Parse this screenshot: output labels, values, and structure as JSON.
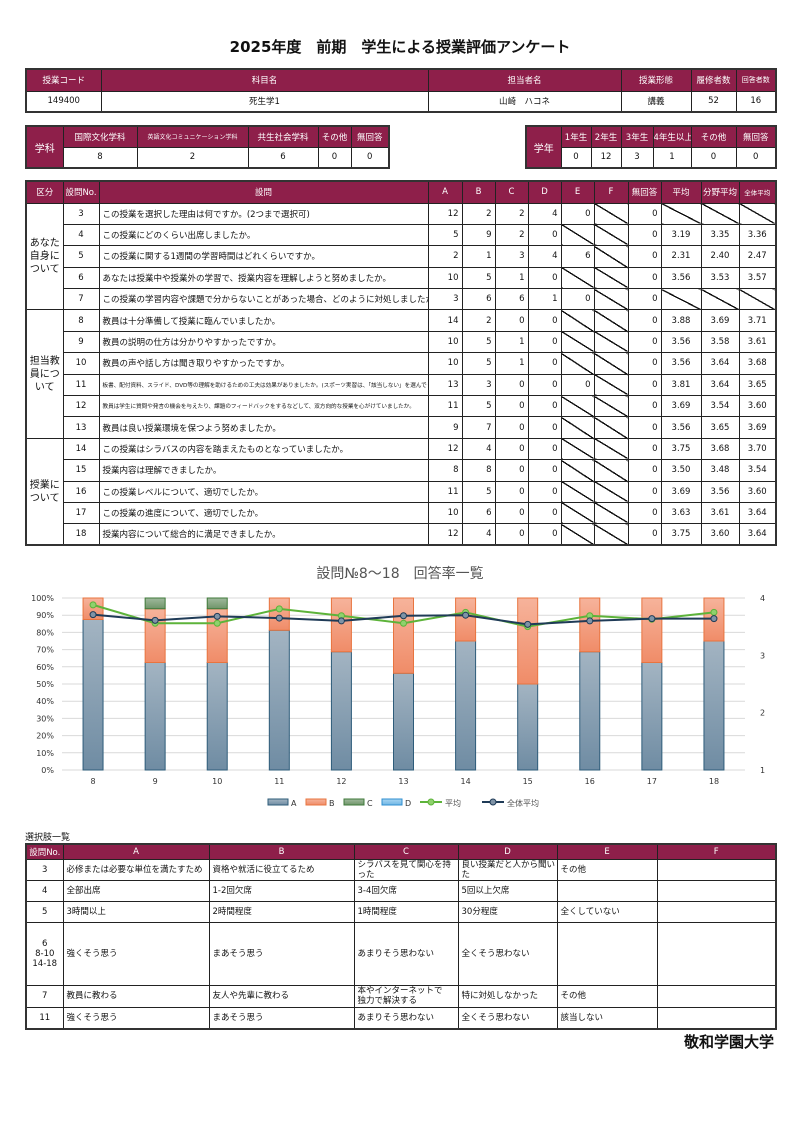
{
  "title": "2025年度　前期　学生による授業評価アンケート",
  "course": {
    "headers": [
      "授業コード",
      "科目名",
      "担当者名",
      "授業形態",
      "履修者数",
      "回答者数"
    ],
    "values": [
      "149400",
      "死生学1",
      "山崎　ハコネ",
      "講義",
      "52",
      "16"
    ]
  },
  "department": {
    "label": "学科",
    "headers": [
      "国際文化学科",
      "英語文化コミュニケーション学科",
      "共生社会学科",
      "その他",
      "無回答"
    ],
    "values": [
      "8",
      "2",
      "6",
      "0",
      "0"
    ]
  },
  "grade": {
    "label": "学年",
    "headers": [
      "1年生",
      "2年生",
      "3年生",
      "4年生以上",
      "その他",
      "無回答"
    ],
    "values": [
      "0",
      "12",
      "3",
      "1",
      "0",
      "0"
    ]
  },
  "results": {
    "headers": [
      "区分",
      "設問No.",
      "設問",
      "A",
      "B",
      "C",
      "D",
      "E",
      "F",
      "無回答",
      "平均",
      "分野平均",
      "全体平均"
    ],
    "groups": [
      {
        "label": "あなた\n自身に\nついて",
        "rows": [
          {
            "no": "3",
            "q": "この授業を選択した理由は何ですか。(2つまで選択可)",
            "v": [
              "12",
              "2",
              "2",
              "4",
              "0",
              null,
              "0",
              null,
              null,
              null
            ]
          },
          {
            "no": "4",
            "q": "この授業にどのくらい出席しましたか。",
            "v": [
              "5",
              "9",
              "2",
              "0",
              null,
              null,
              "0",
              "3.19",
              "3.35",
              "3.36"
            ]
          },
          {
            "no": "5",
            "q": "この授業に関する1週間の学習時間はどれくらいですか。",
            "v": [
              "2",
              "1",
              "3",
              "4",
              "6",
              null,
              "0",
              "2.31",
              "2.40",
              "2.47"
            ]
          },
          {
            "no": "6",
            "q": "あなたは授業中や授業外の学習で、授業内容を理解しようと努めましたか。",
            "v": [
              "10",
              "5",
              "1",
              "0",
              null,
              null,
              "0",
              "3.56",
              "3.53",
              "3.57"
            ]
          },
          {
            "no": "7",
            "q": "この授業の学習内容や課題で分からないことがあった場合、どのように対処しましたか。",
            "v": [
              "3",
              "6",
              "6",
              "1",
              "0",
              null,
              "0",
              null,
              null,
              null
            ]
          }
        ]
      },
      {
        "label": "担当教\n員につ\nいて",
        "rows": [
          {
            "no": "8",
            "q": "教員は十分準備して授業に臨んでいましたか。",
            "v": [
              "14",
              "2",
              "0",
              "0",
              null,
              null,
              "0",
              "3.88",
              "3.69",
              "3.71"
            ]
          },
          {
            "no": "9",
            "q": "教員の説明の仕方は分かりやすかったですか。",
            "v": [
              "10",
              "5",
              "1",
              "0",
              null,
              null,
              "0",
              "3.56",
              "3.58",
              "3.61"
            ]
          },
          {
            "no": "10",
            "q": "教員の声や話し方は聞き取りやすかったですか。",
            "v": [
              "10",
              "5",
              "1",
              "0",
              null,
              null,
              "0",
              "3.56",
              "3.64",
              "3.68"
            ]
          },
          {
            "no": "11",
            "q": "板書、配付資料、スライド、DVD等の理解を助けるための工夫は効果がありましたか。(スポーツ実習は、「該当しない」を選んでください)",
            "small": true,
            "v": [
              "13",
              "3",
              "0",
              "0",
              "0",
              null,
              "0",
              "3.81",
              "3.64",
              "3.65"
            ]
          },
          {
            "no": "12",
            "q": "教員は学生に質問や発言の機会を与えたり、課題のフィードバックをするなどして、双方向的な授業を心がけていましたか。",
            "small": true,
            "v": [
              "11",
              "5",
              "0",
              "0",
              null,
              null,
              "0",
              "3.69",
              "3.54",
              "3.60"
            ]
          },
          {
            "no": "13",
            "q": "教員は良い授業環境を保つよう努めましたか。",
            "v": [
              "9",
              "7",
              "0",
              "0",
              null,
              null,
              "0",
              "3.56",
              "3.65",
              "3.69"
            ]
          }
        ]
      },
      {
        "label": "授業に\nついて",
        "rows": [
          {
            "no": "14",
            "q": "この授業はシラバスの内容を踏まえたものとなっていましたか。",
            "v": [
              "12",
              "4",
              "0",
              "0",
              null,
              null,
              "0",
              "3.75",
              "3.68",
              "3.70"
            ]
          },
          {
            "no": "15",
            "q": "授業内容は理解できましたか。",
            "v": [
              "8",
              "8",
              "0",
              "0",
              null,
              null,
              "0",
              "3.50",
              "3.48",
              "3.54"
            ]
          },
          {
            "no": "16",
            "q": "この授業レベルについて、適切でしたか。",
            "v": [
              "11",
              "5",
              "0",
              "0",
              null,
              null,
              "0",
              "3.69",
              "3.56",
              "3.60"
            ]
          },
          {
            "no": "17",
            "q": "この授業の進度について、適切でしたか。",
            "v": [
              "10",
              "6",
              "0",
              "0",
              null,
              null,
              "0",
              "3.63",
              "3.61",
              "3.64"
            ]
          },
          {
            "no": "18",
            "q": "授業内容について総合的に満足できましたか。",
            "v": [
              "12",
              "4",
              "0",
              "0",
              null,
              null,
              "0",
              "3.75",
              "3.60",
              "3.64"
            ]
          }
        ]
      }
    ]
  },
  "chart_data": {
    "type": "bar",
    "stacked": true,
    "title": "設問№8～18　回答率一覧",
    "categories": [
      "8",
      "9",
      "10",
      "11",
      "12",
      "13",
      "14",
      "15",
      "16",
      "17",
      "18"
    ],
    "series": [
      {
        "name": "A",
        "type": "bar",
        "values": [
          87.5,
          62.5,
          62.5,
          81.25,
          68.75,
          56.25,
          75,
          50,
          68.75,
          62.5,
          75
        ],
        "color": "#7f9bb0"
      },
      {
        "name": "B",
        "type": "bar",
        "values": [
          12.5,
          31.25,
          31.25,
          18.75,
          31.25,
          43.75,
          25,
          50,
          31.25,
          37.5,
          25
        ],
        "color": "#f3a283"
      },
      {
        "name": "C",
        "type": "bar",
        "values": [
          0,
          6.25,
          6.25,
          0,
          0,
          0,
          0,
          0,
          0,
          0,
          0
        ],
        "color": "#8aa886"
      },
      {
        "name": "D",
        "type": "bar",
        "values": [
          0,
          0,
          0,
          0,
          0,
          0,
          0,
          0,
          0,
          0,
          0
        ],
        "color": "#8cc6ea"
      },
      {
        "name": "平均",
        "type": "line",
        "axis": "right",
        "values": [
          3.88,
          3.56,
          3.56,
          3.81,
          3.69,
          3.56,
          3.75,
          3.5,
          3.69,
          3.63,
          3.75
        ],
        "color": "#5db33a"
      },
      {
        "name": "全体平均",
        "type": "line",
        "axis": "right",
        "values": [
          3.71,
          3.61,
          3.68,
          3.65,
          3.6,
          3.69,
          3.7,
          3.54,
          3.6,
          3.64,
          3.64
        ],
        "color": "#1f3b57"
      }
    ],
    "yticks": [
      "0%",
      "10%",
      "20%",
      "30%",
      "40%",
      "50%",
      "60%",
      "70%",
      "80%",
      "90%",
      "100%"
    ],
    "ylim": [
      0,
      100
    ],
    "y2ticks": [
      "1",
      "2",
      "3",
      "4"
    ],
    "y2lim": [
      1,
      4
    ],
    "grid": true,
    "legend": "bottom"
  },
  "choices": {
    "label": "選択肢一覧",
    "headers": [
      "設問No.",
      "A",
      "B",
      "C",
      "D",
      "E",
      "F"
    ],
    "rows": [
      {
        "no": "3",
        "c": [
          "必修または必要な単位を満たすため",
          "資格や就活に役立てるため",
          "シラバスを見て関心を持った",
          "良い授業だと人から聞いた",
          "その他",
          ""
        ]
      },
      {
        "no": "4",
        "c": [
          "全部出席",
          "1-2回欠席",
          "3-4回欠席",
          "5回以上欠席",
          "",
          ""
        ]
      },
      {
        "no": "5",
        "c": [
          "3時間以上",
          "2時間程度",
          "1時間程度",
          "30分程度",
          "全くしていない",
          ""
        ]
      },
      {
        "no": "6\n8-10\n14-18",
        "c": [
          "強くそう思う",
          "まあそう思う",
          "あまりそう思わない",
          "全くそう思わない",
          "",
          ""
        ]
      },
      {
        "no": "7",
        "c": [
          "教員に教わる",
          "友人や先輩に教わる",
          "本やインターネットで\n独力で解決する",
          "特に対処しなかった",
          "その他",
          ""
        ]
      },
      {
        "no": "11",
        "c": [
          "強くそう思う",
          "まあそう思う",
          "あまりそう思わない",
          "全くそう思わない",
          "該当しない",
          ""
        ]
      }
    ]
  },
  "footer": {
    "university": "敬和学園大学"
  }
}
